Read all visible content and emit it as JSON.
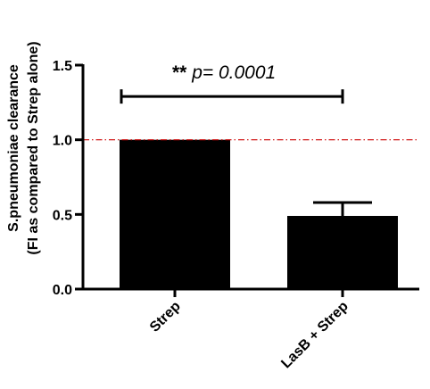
{
  "chart_data": {
    "type": "bar",
    "ylabel_line1": "S.pneumoniae clearance",
    "ylabel_line2": "(FI as compared to Strep alone)",
    "ylim": [
      0,
      1.5
    ],
    "yticks": [
      {
        "value": 0.0,
        "label": "0.0"
      },
      {
        "value": 0.5,
        "label": "0.5"
      },
      {
        "value": 1.0,
        "label": "1.0"
      },
      {
        "value": 1.5,
        "label": "1.5"
      }
    ],
    "categories": [
      "Strep",
      "LasB + Strep"
    ],
    "values": [
      1.0,
      0.49
    ],
    "error_upper": [
      1.0,
      0.58
    ],
    "bar_color": "#000000",
    "reference_line": {
      "value": 1.0,
      "color": "#cc0000",
      "style": "dash-dot"
    },
    "annotation": {
      "stars": "**",
      "text": "p= 0.0001",
      "from_category": 0,
      "to_category": 1,
      "bracket_value": 1.29
    },
    "grid": false
  }
}
